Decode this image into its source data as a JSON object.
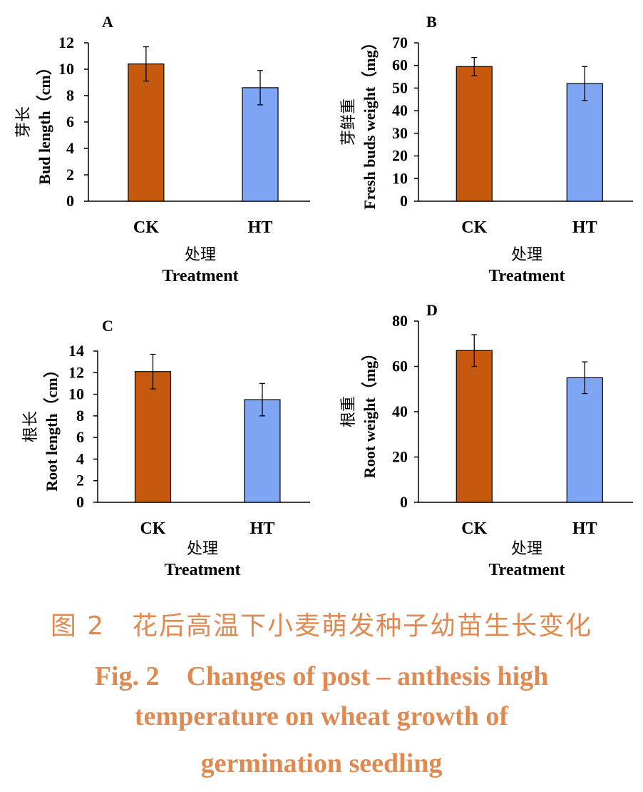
{
  "figure": {
    "caption_zh": "图 2　花后高温下小麦萌发种子幼苗生长变化",
    "caption_en_lines": [
      "Fig. 2　Changes of post – anthesis high",
      "temperature on wheat growth of",
      "germination seedling"
    ],
    "caption_color": "#e08a52"
  },
  "chart_data": [
    {
      "panel": "A",
      "type": "bar",
      "categories": [
        "CK",
        "HT"
      ],
      "values": [
        10.4,
        8.6
      ],
      "errors": [
        1.3,
        1.3
      ],
      "colors": [
        "#c55a0e",
        "#7fa6f4"
      ],
      "ylabel_zh": "芽长",
      "ylabel_en": "Bud length（cm）",
      "xlabel_zh": "处理",
      "xlabel_en": "Treatment",
      "ylim": [
        0,
        12
      ],
      "yticks": [
        0,
        2,
        4,
        6,
        8,
        10,
        12
      ],
      "grid": false,
      "legend": "none"
    },
    {
      "panel": "B",
      "type": "bar",
      "categories": [
        "CK",
        "HT"
      ],
      "values": [
        59.5,
        52
      ],
      "errors": [
        4,
        7.5
      ],
      "colors": [
        "#c55a0e",
        "#7fa6f4"
      ],
      "ylabel_zh": "芽鲜重",
      "ylabel_en": "Fresh buds weight（mg）",
      "xlabel_zh": "处理",
      "xlabel_en": "Treatment",
      "ylim": [
        0,
        70
      ],
      "yticks": [
        0,
        10,
        20,
        30,
        40,
        50,
        60,
        70
      ],
      "grid": false,
      "legend": "none"
    },
    {
      "panel": "C",
      "type": "bar",
      "categories": [
        "CK",
        "HT"
      ],
      "values": [
        12.1,
        9.5
      ],
      "errors": [
        1.6,
        1.5
      ],
      "colors": [
        "#c55a0e",
        "#7fa6f4"
      ],
      "ylabel_zh": "根长",
      "ylabel_en": "Root length（cm）",
      "xlabel_zh": "处理",
      "xlabel_en": "Treatment",
      "ylim": [
        0,
        14
      ],
      "yticks": [
        0,
        2,
        4,
        6,
        8,
        10,
        12,
        14
      ],
      "grid": false,
      "legend": "none"
    },
    {
      "panel": "D",
      "type": "bar",
      "categories": [
        "CK",
        "HT"
      ],
      "values": [
        67,
        55
      ],
      "errors": [
        7,
        7
      ],
      "colors": [
        "#c55a0e",
        "#7fa6f4"
      ],
      "ylabel_zh": "根重",
      "ylabel_en": "Root weight（mg）",
      "xlabel_zh": "处理",
      "xlabel_en": "Treatment",
      "ylim": [
        0,
        80
      ],
      "yticks": [
        0,
        20,
        40,
        60,
        80
      ],
      "grid": false,
      "legend": "none"
    }
  ]
}
